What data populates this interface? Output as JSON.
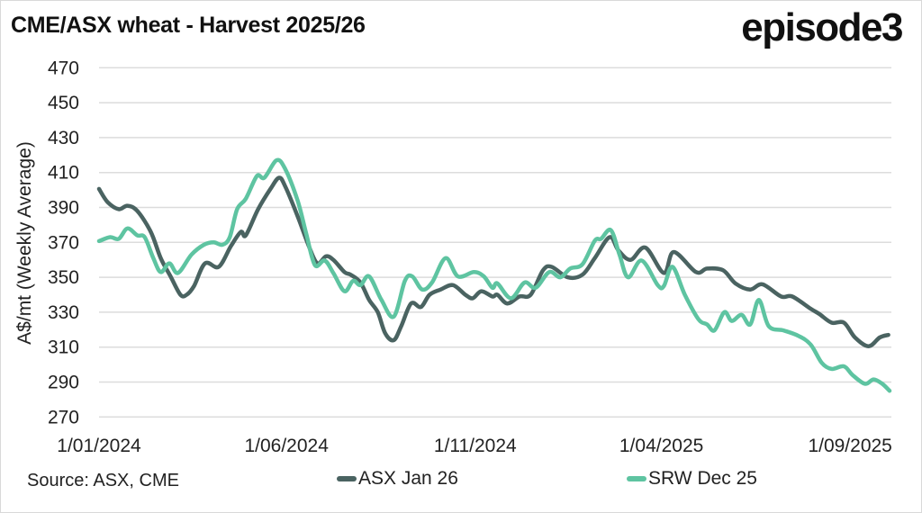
{
  "header": {
    "title": "CME/ASX wheat - Harvest 2025/26",
    "logo_text": "episode3"
  },
  "footer": {
    "source": "Source: ASX, CME"
  },
  "chart_data": {
    "type": "line",
    "title": "CME/ASX wheat - Harvest 2025/26",
    "ylabel": "A$/mt (Weekly Average)",
    "xlabel": "",
    "ylim": [
      270,
      470
    ],
    "yticks": [
      470,
      450,
      430,
      410,
      390,
      370,
      350,
      330,
      310,
      290,
      270
    ],
    "xlim": [
      "2024-01-01",
      "2025-10-03"
    ],
    "xticks": [
      {
        "date": "2024-01-01",
        "label": "1/01/2024"
      },
      {
        "date": "2024-06-01",
        "label": "1/06/2024"
      },
      {
        "date": "2024-11-01",
        "label": "1/11/2024"
      },
      {
        "date": "2025-04-01",
        "label": "1/04/2025"
      },
      {
        "date": "2025-09-01",
        "label": "1/09/2025"
      }
    ],
    "grid": true,
    "legend_position": "bottom",
    "series": [
      {
        "name": "ASX Jan 26",
        "color": "#4a6361",
        "points": [
          [
            "2024-01-01",
            400.6
          ],
          [
            "2024-01-08",
            393
          ],
          [
            "2024-01-17",
            389
          ],
          [
            "2024-01-24",
            391
          ],
          [
            "2024-02-01",
            388
          ],
          [
            "2024-02-12",
            376
          ],
          [
            "2024-02-20",
            361
          ],
          [
            "2024-02-28",
            350.5
          ],
          [
            "2024-03-07",
            340
          ],
          [
            "2024-03-12",
            340
          ],
          [
            "2024-03-18",
            345
          ],
          [
            "2024-03-27",
            358
          ],
          [
            "2024-04-07",
            356
          ],
          [
            "2024-04-17",
            368
          ],
          [
            "2024-04-25",
            376
          ],
          [
            "2024-04-29",
            374
          ],
          [
            "2024-05-09",
            389
          ],
          [
            "2024-05-19",
            400.6
          ],
          [
            "2024-05-26",
            407
          ],
          [
            "2024-05-31",
            402
          ],
          [
            "2024-06-10",
            385
          ],
          [
            "2024-06-19",
            368
          ],
          [
            "2024-06-26",
            358
          ],
          [
            "2024-07-03",
            362
          ],
          [
            "2024-07-09",
            360
          ],
          [
            "2024-07-18",
            353
          ],
          [
            "2024-07-23",
            351.5
          ],
          [
            "2024-07-31",
            347
          ],
          [
            "2024-08-07",
            337
          ],
          [
            "2024-08-14",
            330
          ],
          [
            "2024-08-20",
            318
          ],
          [
            "2024-08-27",
            314
          ],
          [
            "2024-09-02",
            322
          ],
          [
            "2024-09-10",
            335
          ],
          [
            "2024-09-18",
            333
          ],
          [
            "2024-09-25",
            340
          ],
          [
            "2024-10-04",
            343
          ],
          [
            "2024-10-14",
            345.5
          ],
          [
            "2024-10-24",
            340
          ],
          [
            "2024-10-30",
            338
          ],
          [
            "2024-11-06",
            342
          ],
          [
            "2024-11-15",
            339
          ],
          [
            "2024-11-19",
            340
          ],
          [
            "2024-11-27",
            335
          ],
          [
            "2024-12-07",
            339
          ],
          [
            "2024-12-16",
            340
          ],
          [
            "2024-12-26",
            354
          ],
          [
            "2025-01-02",
            356
          ],
          [
            "2025-01-15",
            350
          ],
          [
            "2025-01-27",
            351.5
          ],
          [
            "2025-02-06",
            361
          ],
          [
            "2025-02-18",
            373
          ],
          [
            "2025-02-25",
            365.5
          ],
          [
            "2025-03-07",
            360
          ],
          [
            "2025-03-19",
            367
          ],
          [
            "2025-04-03",
            352.5
          ],
          [
            "2025-04-11",
            364.5
          ],
          [
            "2025-04-29",
            353
          ],
          [
            "2025-05-08",
            355
          ],
          [
            "2025-05-21",
            354
          ],
          [
            "2025-05-31",
            346.5
          ],
          [
            "2025-06-12",
            343
          ],
          [
            "2025-06-22",
            346
          ],
          [
            "2025-07-07",
            339
          ],
          [
            "2025-07-16",
            339
          ],
          [
            "2025-07-31",
            332
          ],
          [
            "2025-08-07",
            329
          ],
          [
            "2025-08-17",
            324
          ],
          [
            "2025-08-27",
            324
          ],
          [
            "2025-09-05",
            315.5
          ],
          [
            "2025-09-16",
            310.5
          ],
          [
            "2025-09-25",
            315.5
          ],
          [
            "2025-10-02",
            317
          ]
        ]
      },
      {
        "name": "SRW Dec 25",
        "color": "#5ec4a1",
        "points": [
          [
            "2024-01-01",
            370.7
          ],
          [
            "2024-01-10",
            373
          ],
          [
            "2024-01-17",
            372
          ],
          [
            "2024-01-24",
            378
          ],
          [
            "2024-02-01",
            374
          ],
          [
            "2024-02-07",
            373
          ],
          [
            "2024-02-14",
            361
          ],
          [
            "2024-02-20",
            353
          ],
          [
            "2024-02-27",
            358
          ],
          [
            "2024-03-05",
            352.5
          ],
          [
            "2024-03-16",
            363
          ],
          [
            "2024-03-26",
            368.6
          ],
          [
            "2024-04-03",
            370
          ],
          [
            "2024-04-10",
            368.6
          ],
          [
            "2024-04-16",
            373
          ],
          [
            "2024-04-22",
            389
          ],
          [
            "2024-04-29",
            395
          ],
          [
            "2024-05-08",
            408
          ],
          [
            "2024-05-14",
            407
          ],
          [
            "2024-05-24",
            417
          ],
          [
            "2024-05-31",
            412
          ],
          [
            "2024-06-10",
            394
          ],
          [
            "2024-06-17",
            375
          ],
          [
            "2024-06-24",
            357
          ],
          [
            "2024-07-02",
            359.6
          ],
          [
            "2024-07-09",
            352.5
          ],
          [
            "2024-07-18",
            342
          ],
          [
            "2024-07-25",
            348
          ],
          [
            "2024-07-31",
            345.5
          ],
          [
            "2024-08-07",
            350.5
          ],
          [
            "2024-08-17",
            337
          ],
          [
            "2024-08-27",
            327.5
          ],
          [
            "2024-09-05",
            348
          ],
          [
            "2024-09-11",
            350.5
          ],
          [
            "2024-09-19",
            343
          ],
          [
            "2024-09-27",
            347
          ],
          [
            "2024-10-08",
            361
          ],
          [
            "2024-10-18",
            350.5
          ],
          [
            "2024-10-31",
            353
          ],
          [
            "2024-11-08",
            350.5
          ],
          [
            "2024-11-15",
            344
          ],
          [
            "2024-11-19",
            346.5
          ],
          [
            "2024-11-30",
            338
          ],
          [
            "2024-12-11",
            347
          ],
          [
            "2024-12-20",
            344
          ],
          [
            "2024-12-31",
            353
          ],
          [
            "2025-01-09",
            350
          ],
          [
            "2025-01-17",
            355
          ],
          [
            "2025-01-27",
            357.5
          ],
          [
            "2025-02-06",
            371
          ],
          [
            "2025-02-11",
            372
          ],
          [
            "2025-02-19",
            377
          ],
          [
            "2025-02-26",
            363
          ],
          [
            "2025-03-05",
            350
          ],
          [
            "2025-03-16",
            359.6
          ],
          [
            "2025-03-29",
            345.5
          ],
          [
            "2025-04-03",
            345
          ],
          [
            "2025-04-10",
            356
          ],
          [
            "2025-04-20",
            340
          ],
          [
            "2025-05-01",
            326
          ],
          [
            "2025-05-08",
            323
          ],
          [
            "2025-05-14",
            319.6
          ],
          [
            "2025-05-22",
            330
          ],
          [
            "2025-05-28",
            325
          ],
          [
            "2025-06-05",
            328.5
          ],
          [
            "2025-06-12",
            323
          ],
          [
            "2025-06-19",
            337
          ],
          [
            "2025-06-27",
            322
          ],
          [
            "2025-07-09",
            319.6
          ],
          [
            "2025-07-21",
            316.5
          ],
          [
            "2025-07-31",
            311.5
          ],
          [
            "2025-08-09",
            301
          ],
          [
            "2025-08-17",
            297.5
          ],
          [
            "2025-08-27",
            299
          ],
          [
            "2025-09-03",
            294
          ],
          [
            "2025-09-13",
            289
          ],
          [
            "2025-09-20",
            291.5
          ],
          [
            "2025-09-27",
            289
          ],
          [
            "2025-10-03",
            285
          ]
        ]
      }
    ]
  }
}
